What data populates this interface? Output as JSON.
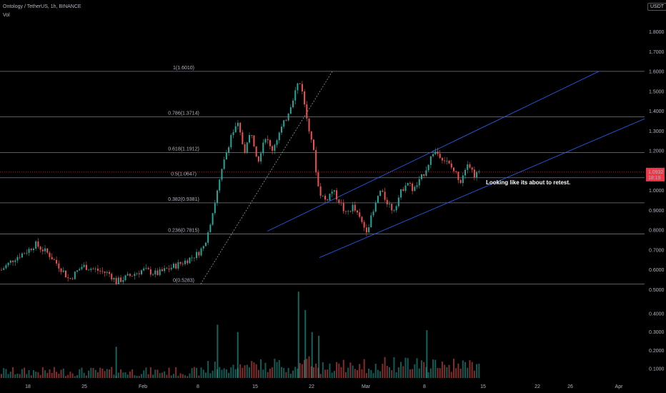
{
  "header": {
    "symbol_line": "Ontology / TetherUS, 1h, BINANCE",
    "indicator": "Vol"
  },
  "currency_badge": "USDT",
  "chart_data": {
    "type": "candlestick",
    "price_axis": {
      "ticks": [
        1.8,
        1.7,
        1.6,
        1.5,
        1.4,
        1.3,
        1.2,
        1.1,
        1.0,
        0.9,
        0.8,
        0.7,
        0.6,
        0.5
      ],
      "tick_labels": [
        "1.8000",
        "1.7000",
        "1.6000",
        "1.5000",
        "1.4000",
        "1.3000",
        "1.2000",
        "1.1000",
        "1.0000",
        "0.9000",
        "0.8000",
        "0.7000",
        "0.6000",
        "0.5000"
      ],
      "range": [
        0.48,
        1.86
      ]
    },
    "volume_axis": {
      "ticks": [
        0.4,
        0.3,
        0.2,
        0.1
      ],
      "tick_labels": [
        "0.4000",
        "0.3000",
        "0.2000",
        "0.1000"
      ]
    },
    "time_axis": {
      "labels": [
        "18",
        "25",
        "Feb",
        "8",
        "15",
        "22",
        "Mar",
        "8",
        "15",
        "22",
        "26",
        "Apr"
      ]
    },
    "last_price": {
      "value": 1.0932,
      "label": "1.0932",
      "countdown": "18:19",
      "color": "#f23645"
    },
    "fibonacci": [
      {
        "ratio_label": "1(1.6010)",
        "price": 1.601
      },
      {
        "ratio_label": "0.786(1.3714)",
        "price": 1.3714
      },
      {
        "ratio_label": "0.618(1.1912)",
        "price": 1.1912
      },
      {
        "ratio_label": "0.5(1.0647)",
        "price": 1.0647
      },
      {
        "ratio_label": "0.382(0.9381)",
        "price": 0.9381
      },
      {
        "ratio_label": "0.236(0.7815)",
        "price": 0.7815
      },
      {
        "ratio_label": "0(0.5283)",
        "price": 0.5283
      }
    ],
    "annotation": "Looking like its about to retest.",
    "price_path": [
      {
        "t": 0,
        "p": 0.6
      },
      {
        "t": 2,
        "p": 0.66
      },
      {
        "t": 4,
        "p": 0.7
      },
      {
        "t": 5,
        "p": 0.73
      },
      {
        "t": 7,
        "p": 0.68
      },
      {
        "t": 9,
        "p": 0.6
      },
      {
        "t": 10,
        "p": 0.55
      },
      {
        "t": 12,
        "p": 0.62
      },
      {
        "t": 14,
        "p": 0.6
      },
      {
        "t": 16,
        "p": 0.58
      },
      {
        "t": 17,
        "p": 0.54
      },
      {
        "t": 19,
        "p": 0.57
      },
      {
        "t": 21,
        "p": 0.6
      },
      {
        "t": 23,
        "p": 0.58
      },
      {
        "t": 25,
        "p": 0.61
      },
      {
        "t": 27,
        "p": 0.64
      },
      {
        "t": 29,
        "p": 0.68
      },
      {
        "t": 30,
        "p": 0.72
      },
      {
        "t": 31,
        "p": 0.85
      },
      {
        "t": 32,
        "p": 1.0
      },
      {
        "t": 33,
        "p": 1.15
      },
      {
        "t": 34,
        "p": 1.28
      },
      {
        "t": 35,
        "p": 1.33
      },
      {
        "t": 36,
        "p": 1.2
      },
      {
        "t": 37,
        "p": 1.3
      },
      {
        "t": 38,
        "p": 1.15
      },
      {
        "t": 39,
        "p": 1.28
      },
      {
        "t": 40,
        "p": 1.2
      },
      {
        "t": 41,
        "p": 1.28
      },
      {
        "t": 42,
        "p": 1.35
      },
      {
        "t": 43,
        "p": 1.45
      },
      {
        "t": 44,
        "p": 1.55
      },
      {
        "t": 44.5,
        "p": 1.52
      },
      {
        "t": 45,
        "p": 1.4
      },
      {
        "t": 46,
        "p": 1.25
      },
      {
        "t": 47,
        "p": 1.0
      },
      {
        "t": 48,
        "p": 0.95
      },
      {
        "t": 49,
        "p": 1.0
      },
      {
        "t": 50,
        "p": 0.95
      },
      {
        "t": 51,
        "p": 0.88
      },
      {
        "t": 52,
        "p": 0.92
      },
      {
        "t": 53,
        "p": 0.86
      },
      {
        "t": 54,
        "p": 0.8
      },
      {
        "t": 55,
        "p": 0.88
      },
      {
        "t": 56,
        "p": 1.0
      },
      {
        "t": 57,
        "p": 0.95
      },
      {
        "t": 58,
        "p": 0.9
      },
      {
        "t": 59,
        "p": 0.98
      },
      {
        "t": 60,
        "p": 1.05
      },
      {
        "t": 61,
        "p": 1.0
      },
      {
        "t": 62,
        "p": 1.05
      },
      {
        "t": 63,
        "p": 1.12
      },
      {
        "t": 64,
        "p": 1.2
      },
      {
        "t": 65,
        "p": 1.18
      },
      {
        "t": 66,
        "p": 1.14
      },
      {
        "t": 67,
        "p": 1.1
      },
      {
        "t": 68,
        "p": 1.05
      },
      {
        "t": 69,
        "p": 1.15
      },
      {
        "t": 70,
        "p": 1.08
      },
      {
        "t": 71,
        "p": 1.09
      }
    ],
    "volume_spikes": [
      {
        "t": 32,
        "v": 0.34
      },
      {
        "t": 35,
        "v": 0.3
      },
      {
        "t": 44,
        "v": 0.52
      },
      {
        "t": 45,
        "v": 0.42
      },
      {
        "t": 46,
        "v": 0.3
      },
      {
        "t": 47,
        "v": 0.28
      },
      {
        "t": 63,
        "v": 0.31
      },
      {
        "t": 17,
        "v": 0.22
      }
    ],
    "colors": {
      "up": "#26a69a",
      "down": "#ef5350",
      "fib_line": "#787b86",
      "channel": "#2962ff",
      "grid": "#1a1a1a",
      "trend_dotted": "#9598a1"
    }
  }
}
